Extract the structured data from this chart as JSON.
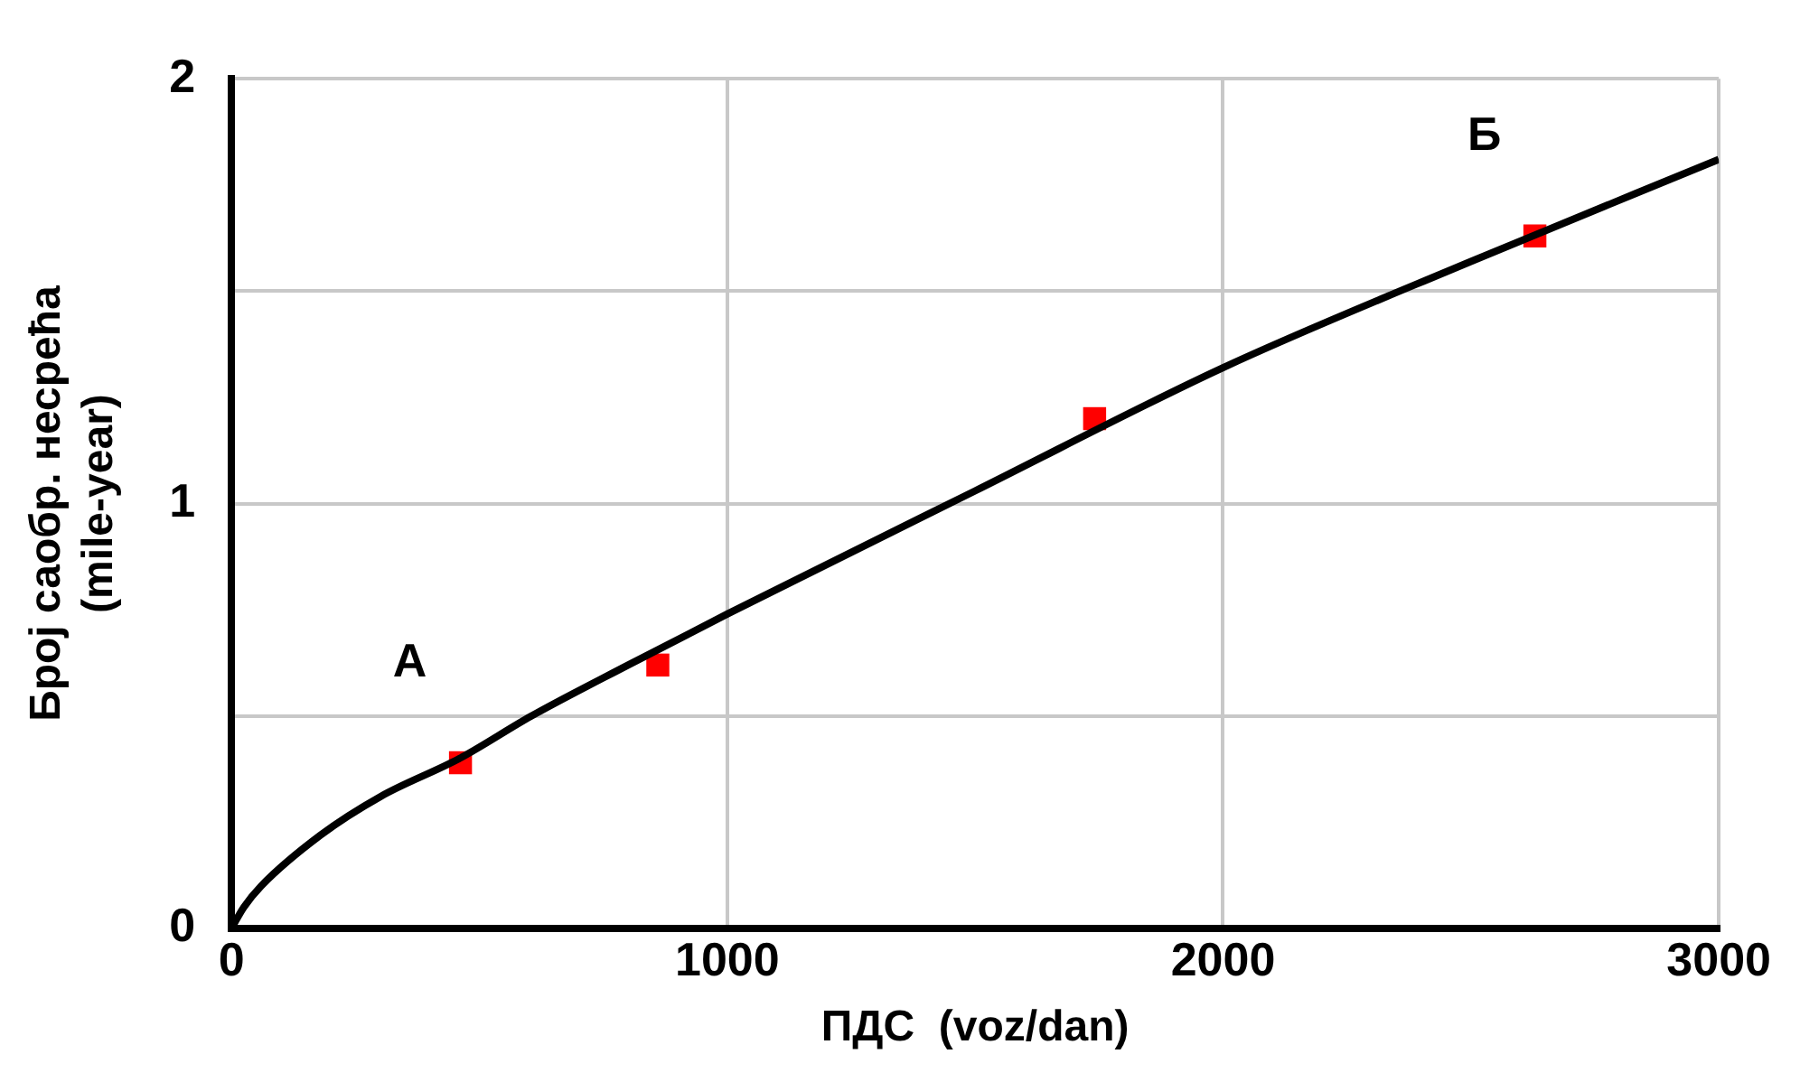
{
  "chart_data": {
    "type": "scatter",
    "xlabel": "ПДС  (voz/dan)",
    "ylabel": "Број саобр. несрећа\n(mile-year)",
    "xlim": [
      0,
      3000
    ],
    "xticks": [
      0,
      1000,
      2000,
      3000
    ],
    "ylim": [
      0,
      2
    ],
    "yticks": [
      0,
      {
        "value": 0.5,
        "label": null
      },
      1,
      {
        "value": 1.5,
        "label": null
      },
      2
    ],
    "grid": true,
    "legend": false,
    "series": [
      {
        "type": "line",
        "color": "#000000",
        "marker": "none",
        "x": [
          0,
          25,
          60,
          180,
          300,
          460,
          605,
          800,
          1000,
          1500,
          2000,
          2500,
          3000
        ],
        "values": [
          0,
          0.05,
          0.1,
          0.22,
          0.31,
          0.4,
          0.5,
          0.62,
          0.74,
          1.03,
          1.32,
          1.57,
          1.81
        ]
      },
      {
        "color": "#ff0000",
        "marker": "square",
        "x": [
          462,
          860,
          1741,
          2629
        ],
        "values": [
          0.39,
          0.62,
          1.2,
          1.63
        ]
      }
    ],
    "annotations": [
      {
        "text": "А",
        "x": 462,
        "y": 0.39
      },
      {
        "text": "Б",
        "x": 2629,
        "y": 1.63
      }
    ]
  }
}
